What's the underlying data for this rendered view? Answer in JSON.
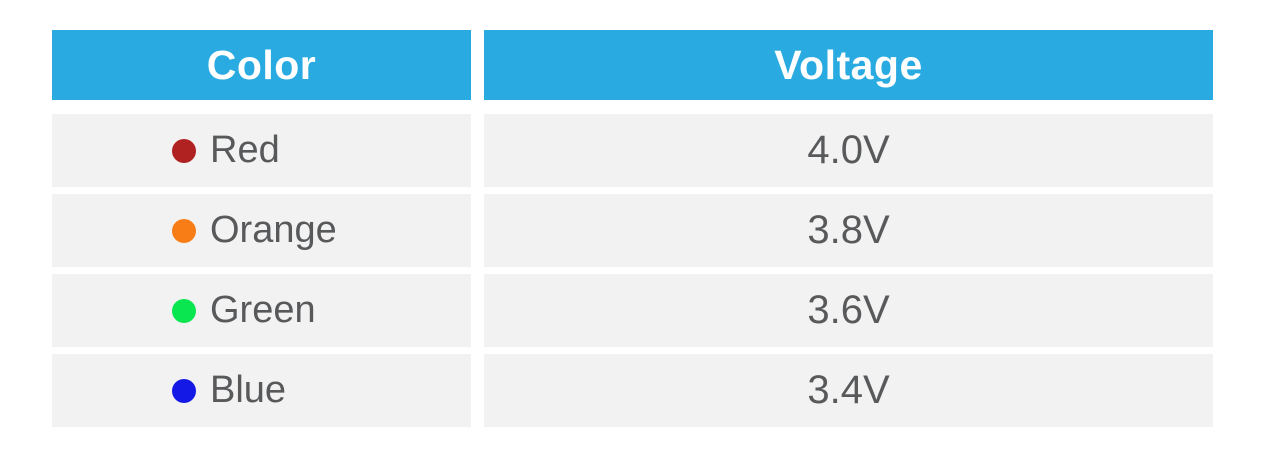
{
  "theme": {
    "page_bg": "#ffffff",
    "header_bg": "#29abe2",
    "header_text": "#ffffff",
    "row_bg": "#f2f2f2",
    "cell_text": "#58595b"
  },
  "table": {
    "columns": [
      {
        "label": "Color"
      },
      {
        "label": "Voltage"
      }
    ],
    "rows": [
      {
        "color_label": "Red",
        "dot_color": "#b02121",
        "voltage": "4.0V"
      },
      {
        "color_label": "Orange",
        "dot_color": "#f97d17",
        "voltage": "3.8V"
      },
      {
        "color_label": "Green",
        "dot_color": "#0ae650",
        "voltage": "3.6V"
      },
      {
        "color_label": "Blue",
        "dot_color": "#1519e6",
        "voltage": "3.4V"
      }
    ]
  },
  "chart_data": {
    "type": "table",
    "title": "",
    "columns": [
      "Color",
      "Voltage"
    ],
    "rows": [
      [
        "Red",
        "4.0V"
      ],
      [
        "Orange",
        "3.8V"
      ],
      [
        "Green",
        "3.6V"
      ],
      [
        "Blue",
        "3.4V"
      ]
    ],
    "voltages_numeric": [
      4.0,
      3.8,
      3.6,
      3.4
    ],
    "dot_colors": [
      "#b02121",
      "#f97d17",
      "#0ae650",
      "#1519e6"
    ]
  }
}
